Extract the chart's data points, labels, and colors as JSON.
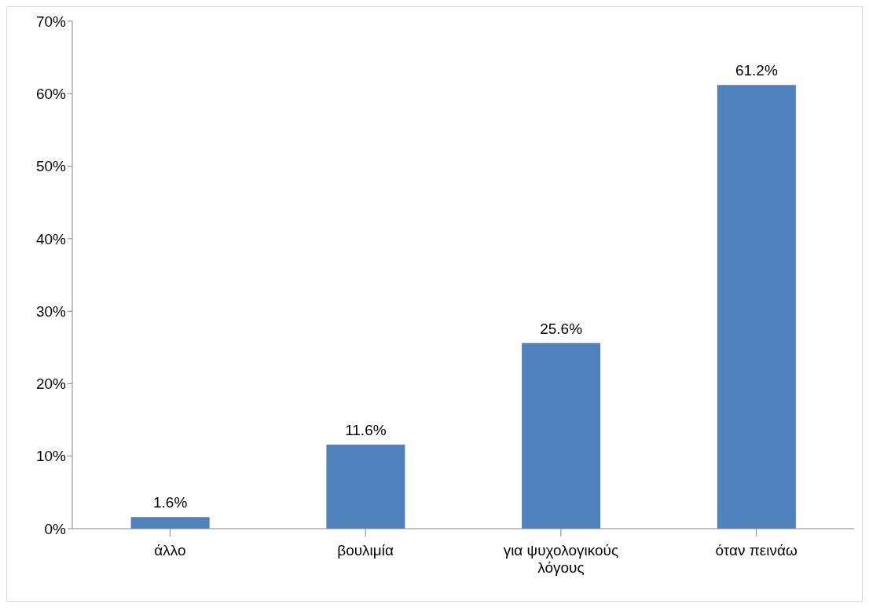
{
  "chart_data": {
    "type": "bar",
    "categories": [
      "άλλο",
      "βουλιμία",
      "για ψυχολογικούς λόγους",
      "όταν πεινάω"
    ],
    "values": [
      1.6,
      11.6,
      25.6,
      61.2
    ],
    "value_labels": [
      "1.6%",
      "11.6%",
      "25.6%",
      "61.2%"
    ],
    "color": "#4f81bd",
    "ylim": [
      0,
      70
    ],
    "yticks": [
      {
        "value": 0,
        "label": "0%"
      },
      {
        "value": 10,
        "label": "10%"
      },
      {
        "value": 20,
        "label": "20%"
      },
      {
        "value": 30,
        "label": "30%"
      },
      {
        "value": 40,
        "label": "40%"
      },
      {
        "value": 50,
        "label": "50%"
      },
      {
        "value": 60,
        "label": "60%"
      },
      {
        "value": 70,
        "label": "70%"
      }
    ],
    "grid": false,
    "legend": false
  }
}
